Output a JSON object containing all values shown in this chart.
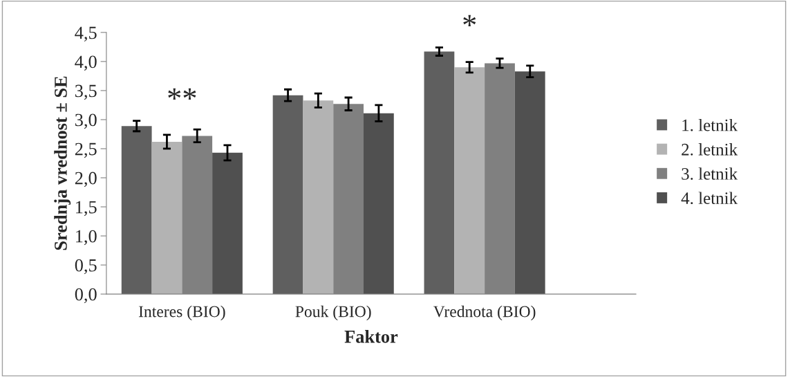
{
  "chart_data": {
    "type": "bar",
    "xlabel": "Faktor",
    "ylabel": "Srednja vrednost ± SE",
    "categories": [
      "Interes (BIO)",
      "Pouk (BIO)",
      "Vrednota (BIO)"
    ],
    "series": [
      {
        "name": "1. letnik",
        "color": "#5f5f5f",
        "values": [
          2.89,
          3.42,
          4.17
        ],
        "errors": [
          0.09,
          0.1,
          0.07
        ]
      },
      {
        "name": "2. letnik",
        "color": "#b3b3b3",
        "values": [
          2.62,
          3.33,
          3.9
        ],
        "errors": [
          0.12,
          0.12,
          0.09
        ]
      },
      {
        "name": "3. letnik",
        "color": "#808080",
        "values": [
          2.72,
          3.27,
          3.97
        ],
        "errors": [
          0.11,
          0.11,
          0.08
        ]
      },
      {
        "name": "4. letnik",
        "color": "#505050",
        "values": [
          2.43,
          3.11,
          3.83
        ],
        "errors": [
          0.13,
          0.14,
          0.1
        ]
      }
    ],
    "ylim": [
      0,
      4.5
    ],
    "yticks": [
      {
        "value": 0,
        "label": "0,0"
      },
      {
        "value": 0.5,
        "label": "0,5"
      },
      {
        "value": 1,
        "label": "1,0"
      },
      {
        "value": 1.5,
        "label": "1,5"
      },
      {
        "value": 2,
        "label": "2,0"
      },
      {
        "value": 2.5,
        "label": "2,5"
      },
      {
        "value": 3,
        "label": "3,0"
      },
      {
        "value": 3.5,
        "label": "3,5"
      },
      {
        "value": 4,
        "label": "4,0"
      },
      {
        "value": 4.5,
        "label": "4,5"
      }
    ],
    "annotations": [
      "**",
      "*"
    ],
    "legend": "right",
    "grid": false
  }
}
